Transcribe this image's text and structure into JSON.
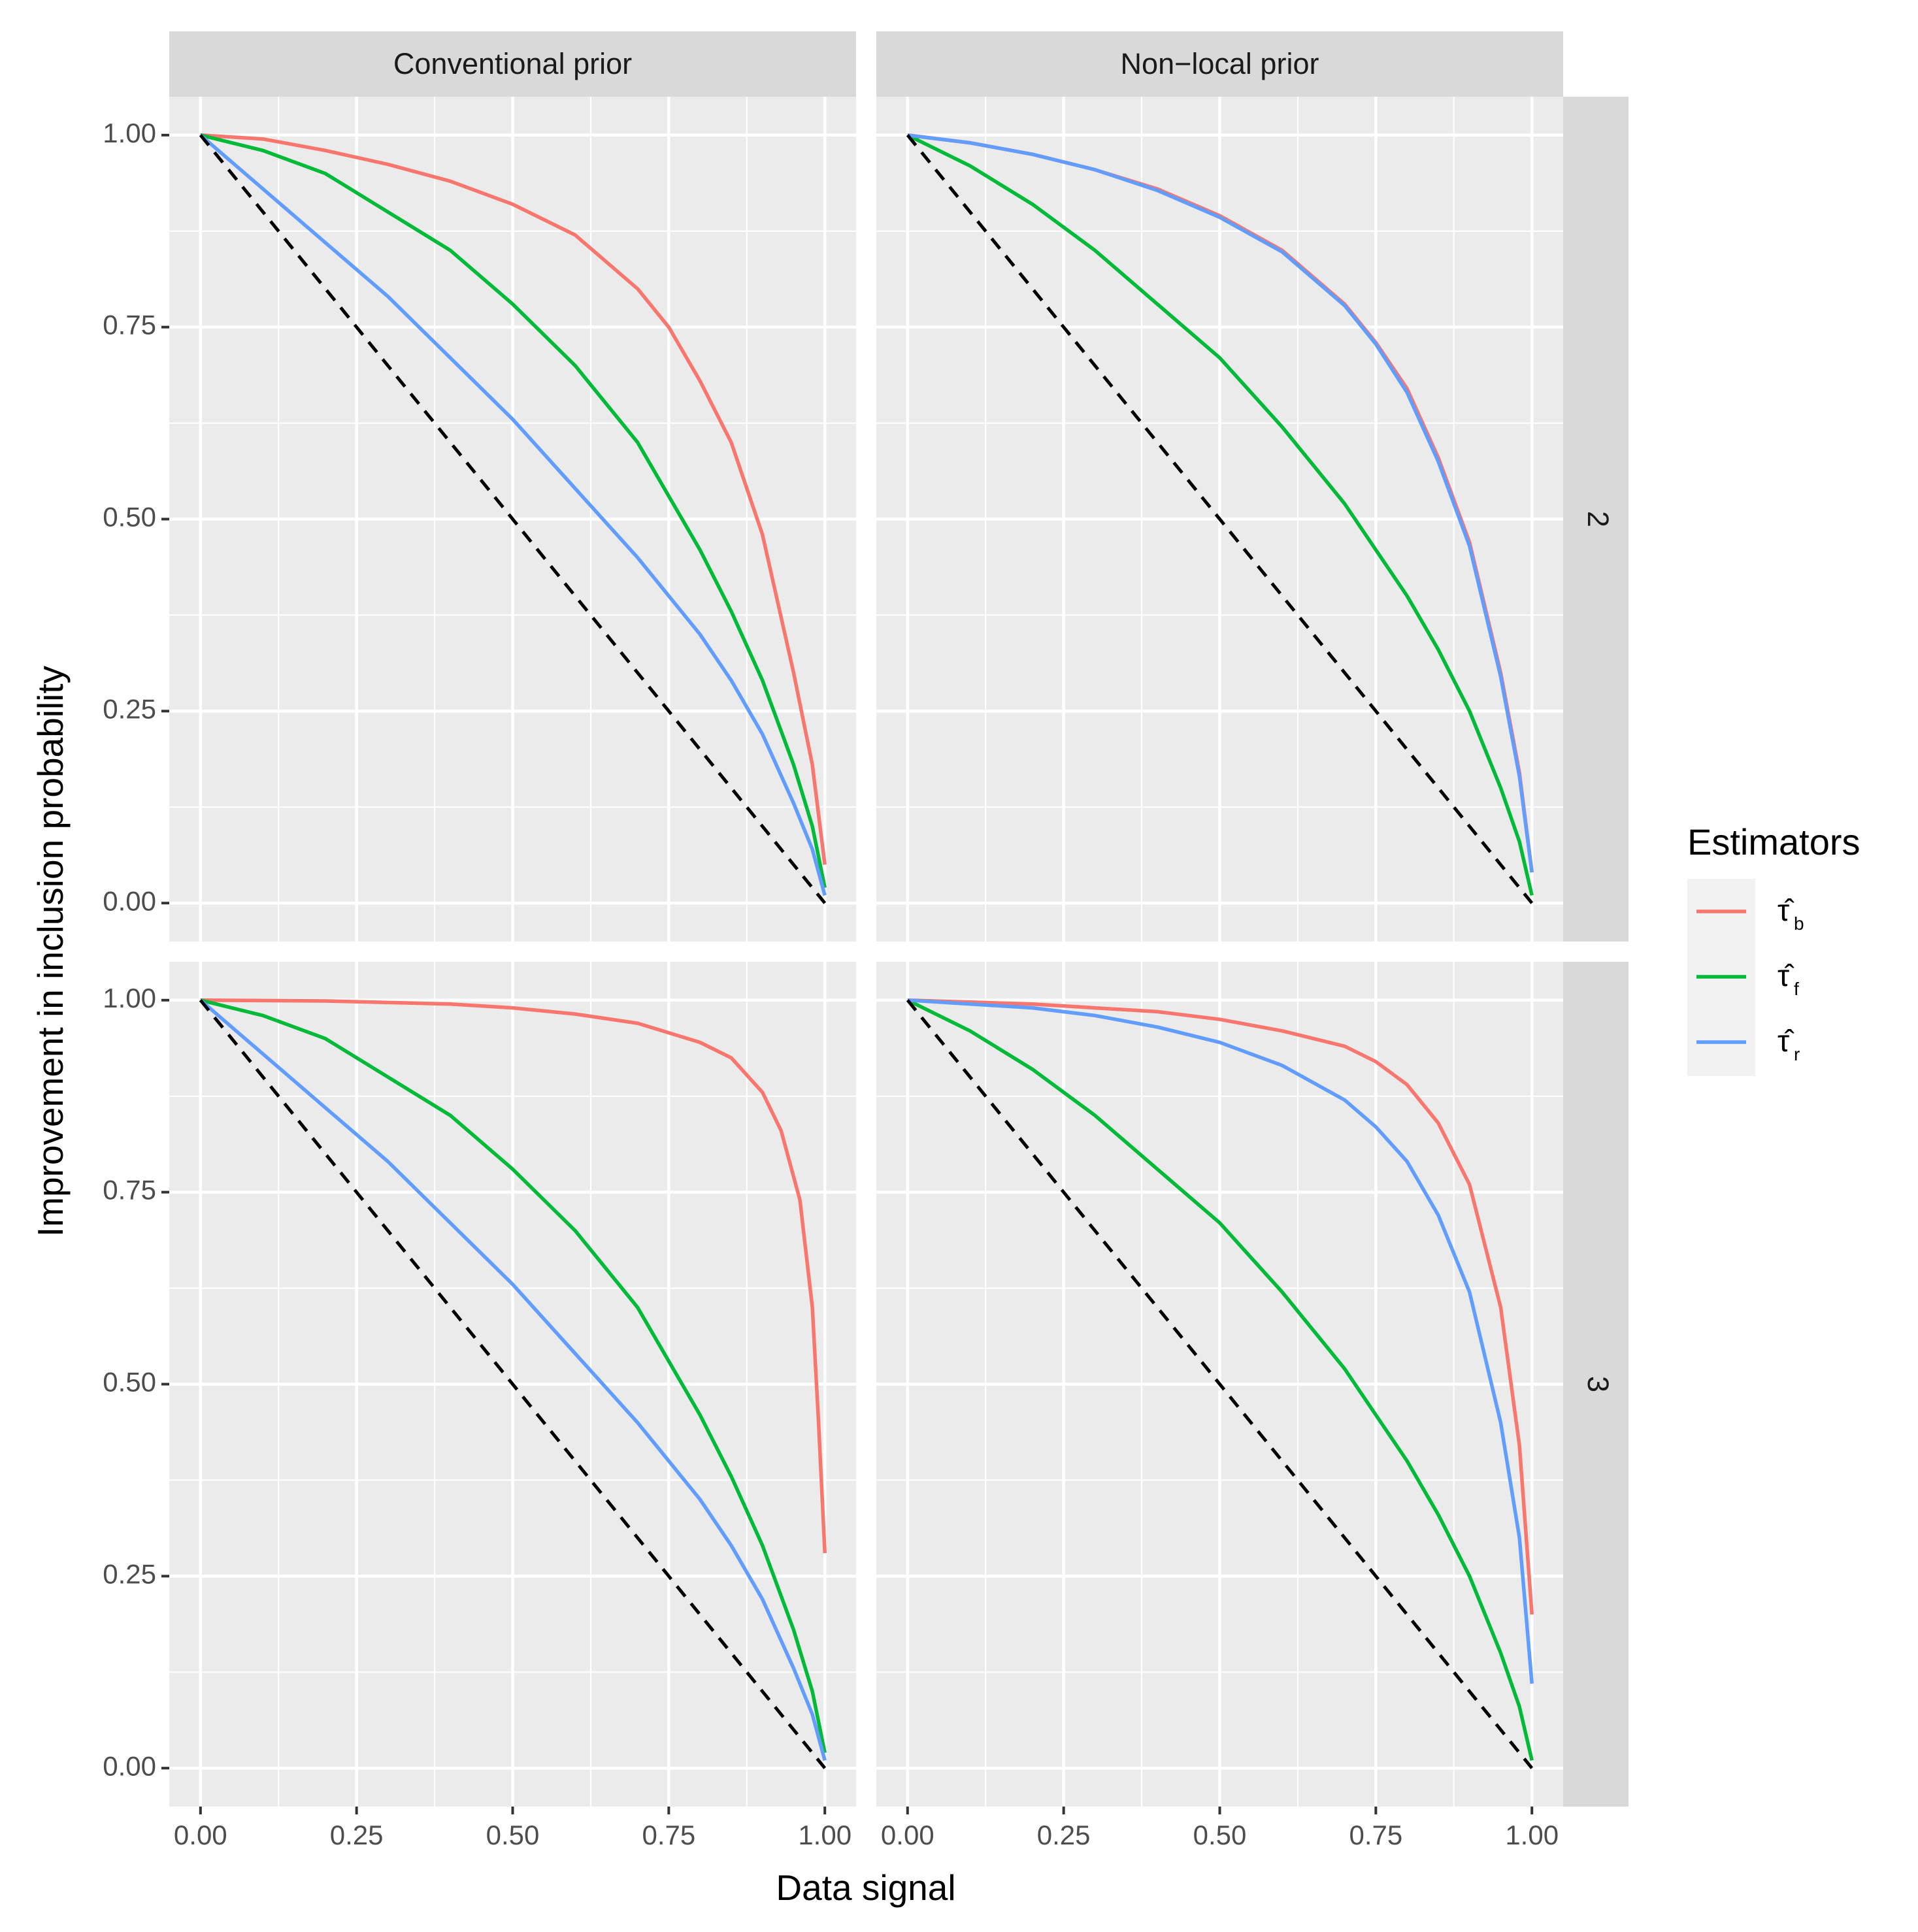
{
  "chart_data": {
    "type": "line",
    "facet_layout": "grid",
    "xlabel": "Data signal",
    "ylabel": "Improvement in inclusion probability",
    "xlim": [
      0,
      1
    ],
    "ylim": [
      0,
      1
    ],
    "x_ticks": [
      "0.00",
      "0.25",
      "0.50",
      "0.75",
      "1.00"
    ],
    "y_ticks": [
      "0.00",
      "0.25",
      "0.50",
      "0.75",
      "1.00"
    ],
    "columns": [
      "Conventional prior",
      "Non−local prior"
    ],
    "rows": [
      "2",
      "3"
    ],
    "legend": {
      "title": "Estimators",
      "position": "right",
      "entries": [
        {
          "key": "b",
          "symbol": "τ̂",
          "sub": "b",
          "color": "#F8766D"
        },
        {
          "key": "f",
          "symbol": "τ̂",
          "sub": "f",
          "color": "#00BA38"
        },
        {
          "key": "r",
          "symbol": "τ̂",
          "sub": "r",
          "color": "#619CFF"
        }
      ]
    },
    "reference_line": {
      "style": "dashed",
      "color": "#000000",
      "x": [
        0,
        1
      ],
      "y": [
        1,
        0
      ]
    },
    "panels": [
      {
        "column": "Conventional prior",
        "row": "2",
        "series": [
          {
            "name": "b",
            "x": [
              0,
              0.1,
              0.2,
              0.3,
              0.4,
              0.5,
              0.6,
              0.7,
              0.75,
              0.8,
              0.85,
              0.9,
              0.95,
              0.98,
              1.0
            ],
            "y": [
              1.0,
              0.995,
              0.98,
              0.962,
              0.94,
              0.91,
              0.87,
              0.8,
              0.75,
              0.68,
              0.6,
              0.48,
              0.3,
              0.18,
              0.05
            ]
          },
          {
            "name": "f",
            "x": [
              0,
              0.1,
              0.2,
              0.3,
              0.4,
              0.5,
              0.6,
              0.7,
              0.75,
              0.8,
              0.85,
              0.9,
              0.95,
              0.98,
              1.0
            ],
            "y": [
              1.0,
              0.98,
              0.95,
              0.9,
              0.85,
              0.78,
              0.7,
              0.6,
              0.53,
              0.46,
              0.38,
              0.29,
              0.18,
              0.1,
              0.02
            ]
          },
          {
            "name": "r",
            "x": [
              0,
              0.1,
              0.2,
              0.3,
              0.4,
              0.5,
              0.6,
              0.7,
              0.75,
              0.8,
              0.85,
              0.9,
              0.95,
              0.98,
              1.0
            ],
            "y": [
              1.0,
              0.93,
              0.86,
              0.79,
              0.71,
              0.63,
              0.54,
              0.45,
              0.4,
              0.35,
              0.29,
              0.22,
              0.13,
              0.07,
              0.01
            ]
          }
        ]
      },
      {
        "column": "Non−local prior",
        "row": "2",
        "series": [
          {
            "name": "b",
            "x": [
              0,
              0.1,
              0.2,
              0.3,
              0.4,
              0.5,
              0.6,
              0.7,
              0.75,
              0.8,
              0.85,
              0.9,
              0.95,
              0.98,
              1.0
            ],
            "y": [
              1.0,
              0.99,
              0.975,
              0.955,
              0.93,
              0.895,
              0.85,
              0.78,
              0.73,
              0.67,
              0.58,
              0.47,
              0.3,
              0.17,
              0.04
            ]
          },
          {
            "name": "f",
            "x": [
              0,
              0.1,
              0.2,
              0.3,
              0.4,
              0.5,
              0.6,
              0.7,
              0.75,
              0.8,
              0.85,
              0.9,
              0.95,
              0.98,
              1.0
            ],
            "y": [
              1.0,
              0.96,
              0.91,
              0.85,
              0.78,
              0.71,
              0.62,
              0.52,
              0.46,
              0.4,
              0.33,
              0.25,
              0.15,
              0.08,
              0.01
            ]
          },
          {
            "name": "r",
            "x": [
              0,
              0.1,
              0.2,
              0.3,
              0.4,
              0.5,
              0.6,
              0.7,
              0.75,
              0.8,
              0.85,
              0.9,
              0.95,
              0.98,
              1.0
            ],
            "y": [
              1.0,
              0.99,
              0.975,
              0.955,
              0.928,
              0.893,
              0.848,
              0.778,
              0.728,
              0.665,
              0.575,
              0.465,
              0.295,
              0.165,
              0.04
            ]
          }
        ]
      },
      {
        "column": "Conventional prior",
        "row": "3",
        "series": [
          {
            "name": "b",
            "x": [
              0,
              0.2,
              0.4,
              0.5,
              0.6,
              0.7,
              0.8,
              0.85,
              0.9,
              0.93,
              0.96,
              0.98,
              0.99,
              1.0
            ],
            "y": [
              1.0,
              0.999,
              0.995,
              0.99,
              0.982,
              0.97,
              0.945,
              0.925,
              0.88,
              0.83,
              0.74,
              0.6,
              0.45,
              0.28
            ]
          },
          {
            "name": "f",
            "x": [
              0,
              0.1,
              0.2,
              0.3,
              0.4,
              0.5,
              0.6,
              0.7,
              0.75,
              0.8,
              0.85,
              0.9,
              0.95,
              0.98,
              1.0
            ],
            "y": [
              1.0,
              0.98,
              0.95,
              0.9,
              0.85,
              0.78,
              0.7,
              0.6,
              0.53,
              0.46,
              0.38,
              0.29,
              0.18,
              0.1,
              0.02
            ]
          },
          {
            "name": "r",
            "x": [
              0,
              0.1,
              0.2,
              0.3,
              0.4,
              0.5,
              0.6,
              0.7,
              0.75,
              0.8,
              0.85,
              0.9,
              0.95,
              0.98,
              1.0
            ],
            "y": [
              1.0,
              0.93,
              0.86,
              0.79,
              0.71,
              0.63,
              0.54,
              0.45,
              0.4,
              0.35,
              0.29,
              0.22,
              0.13,
              0.07,
              0.01
            ]
          }
        ]
      },
      {
        "column": "Non−local prior",
        "row": "3",
        "series": [
          {
            "name": "b",
            "x": [
              0,
              0.2,
              0.3,
              0.4,
              0.5,
              0.6,
              0.7,
              0.75,
              0.8,
              0.85,
              0.9,
              0.95,
              0.98,
              1.0
            ],
            "y": [
              1.0,
              0.995,
              0.99,
              0.985,
              0.975,
              0.96,
              0.94,
              0.92,
              0.89,
              0.84,
              0.76,
              0.6,
              0.42,
              0.2
            ]
          },
          {
            "name": "f",
            "x": [
              0,
              0.1,
              0.2,
              0.3,
              0.4,
              0.5,
              0.6,
              0.7,
              0.75,
              0.8,
              0.85,
              0.9,
              0.95,
              0.98,
              1.0
            ],
            "y": [
              1.0,
              0.96,
              0.91,
              0.85,
              0.78,
              0.71,
              0.62,
              0.52,
              0.46,
              0.4,
              0.33,
              0.25,
              0.15,
              0.08,
              0.01
            ]
          },
          {
            "name": "r",
            "x": [
              0,
              0.2,
              0.3,
              0.4,
              0.5,
              0.6,
              0.7,
              0.75,
              0.8,
              0.85,
              0.9,
              0.95,
              0.98,
              1.0
            ],
            "y": [
              1.0,
              0.99,
              0.98,
              0.965,
              0.945,
              0.915,
              0.87,
              0.835,
              0.79,
              0.72,
              0.62,
              0.45,
              0.3,
              0.11
            ]
          }
        ]
      }
    ]
  }
}
